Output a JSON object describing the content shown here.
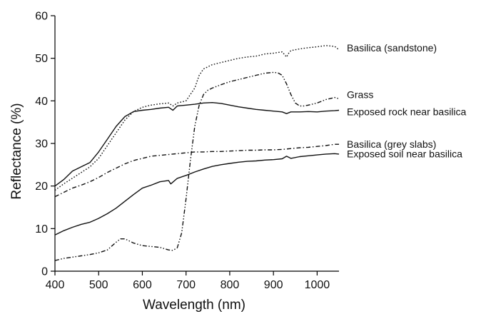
{
  "chart_data": {
    "type": "line",
    "title": "",
    "xlabel": "Wavelength (nm)",
    "ylabel": "Reflectance (%)",
    "xlim": [
      400,
      1050
    ],
    "ylim": [
      0,
      60
    ],
    "x_ticks": [
      400,
      500,
      600,
      700,
      800,
      900,
      1000
    ],
    "y_ticks": [
      0,
      10,
      20,
      30,
      40,
      50,
      60
    ],
    "grid": false,
    "legend_placement": "right, labels beside line ends",
    "series": [
      {
        "name": "Basilica (sandstone)",
        "style": "dotted",
        "label_value": 52.5,
        "x": [
          400,
          420,
          450,
          480,
          500,
          520,
          540,
          560,
          580,
          600,
          620,
          640,
          660,
          670,
          680,
          700,
          720,
          730,
          740,
          750,
          760,
          780,
          800,
          820,
          840,
          860,
          880,
          900,
          920,
          930,
          935,
          940,
          960,
          980,
          1000,
          1020,
          1040,
          1050
        ],
        "y": [
          19,
          20.5,
          22.5,
          24.5,
          26.5,
          29.5,
          32.5,
          35.5,
          37.5,
          38.5,
          39,
          39.3,
          39.5,
          38.8,
          39.5,
          40,
          43,
          46,
          47.5,
          48,
          48.5,
          49,
          49.5,
          50,
          50.3,
          50.5,
          51,
          51.2,
          51.5,
          50.3,
          51.2,
          51.8,
          52.2,
          52.5,
          52.7,
          53,
          52.8,
          52
        ]
      },
      {
        "name": "Grass",
        "style": "dash-dot-dot",
        "label_value": 41.5,
        "x": [
          400,
          420,
          440,
          460,
          480,
          500,
          520,
          540,
          550,
          560,
          580,
          600,
          620,
          640,
          660,
          670,
          680,
          690,
          700,
          710,
          720,
          730,
          740,
          750,
          760,
          780,
          800,
          820,
          840,
          860,
          880,
          900,
          910,
          920,
          930,
          940,
          950,
          960,
          970,
          980,
          1000,
          1020,
          1040,
          1050
        ],
        "y": [
          2.5,
          3,
          3.3,
          3.6,
          3.9,
          4.3,
          5,
          6.8,
          7.6,
          7.6,
          6.6,
          6,
          5.8,
          5.6,
          5,
          4.9,
          5.5,
          9,
          17,
          26,
          34,
          39,
          41.5,
          42.5,
          43,
          43.8,
          44.5,
          45,
          45.5,
          46,
          46.5,
          46.7,
          46.6,
          46,
          44,
          41.5,
          39.5,
          38.8,
          38.8,
          39,
          39.5,
          40.3,
          40.8,
          40.5
        ]
      },
      {
        "name": "Exposed rock near basilica",
        "style": "solid",
        "label_value": 37.5,
        "x": [
          400,
          420,
          440,
          460,
          480,
          500,
          520,
          540,
          560,
          580,
          600,
          620,
          640,
          660,
          670,
          680,
          700,
          720,
          740,
          760,
          780,
          800,
          820,
          840,
          860,
          880,
          900,
          920,
          930,
          940,
          960,
          980,
          1000,
          1020,
          1040,
          1050
        ],
        "y": [
          20,
          21.5,
          23.5,
          24.5,
          25.5,
          28,
          31,
          34,
          36.3,
          37.5,
          37.8,
          38,
          38.3,
          38.5,
          37.8,
          38.8,
          39,
          39.2,
          39.5,
          39.6,
          39.4,
          39,
          38.6,
          38.3,
          38,
          37.8,
          37.6,
          37.4,
          37,
          37.4,
          37.4,
          37.5,
          37.4,
          37.6,
          37.7,
          37.8
        ]
      },
      {
        "name": "Basilica (grey slabs)",
        "style": "dash-dot",
        "label_value": 29.8,
        "x": [
          400,
          420,
          440,
          460,
          480,
          500,
          520,
          540,
          560,
          580,
          600,
          620,
          640,
          660,
          680,
          700,
          720,
          740,
          760,
          780,
          800,
          820,
          840,
          860,
          880,
          900,
          920,
          940,
          960,
          980,
          1000,
          1020,
          1040,
          1050
        ],
        "y": [
          17.5,
          18.5,
          19.5,
          20.2,
          21,
          22,
          23.2,
          24.2,
          25.2,
          26,
          26.5,
          27,
          27.2,
          27.4,
          27.6,
          27.8,
          28,
          28,
          28.1,
          28.1,
          28.2,
          28.3,
          28.4,
          28.4,
          28.5,
          28.5,
          28.6,
          28.8,
          29,
          29.1,
          29.3,
          29.5,
          29.8,
          29.8
        ]
      },
      {
        "name": "Exposed soil near basilica",
        "style": "solid",
        "label_value": 27.6,
        "x": [
          400,
          420,
          440,
          460,
          480,
          500,
          520,
          540,
          560,
          580,
          600,
          620,
          640,
          660,
          665,
          680,
          700,
          720,
          740,
          760,
          780,
          800,
          820,
          840,
          860,
          880,
          900,
          920,
          930,
          940,
          960,
          980,
          1000,
          1020,
          1040,
          1050
        ],
        "y": [
          8.5,
          9.5,
          10.3,
          11,
          11.5,
          12.4,
          13.5,
          14.8,
          16.4,
          18,
          19.5,
          20.2,
          21,
          21.3,
          20.5,
          21.8,
          22.5,
          23.3,
          24,
          24.6,
          25,
          25.3,
          25.6,
          25.8,
          25.9,
          26.1,
          26.2,
          26.4,
          27,
          26.5,
          26.9,
          27.1,
          27.3,
          27.5,
          27.6,
          27.5
        ]
      }
    ]
  }
}
